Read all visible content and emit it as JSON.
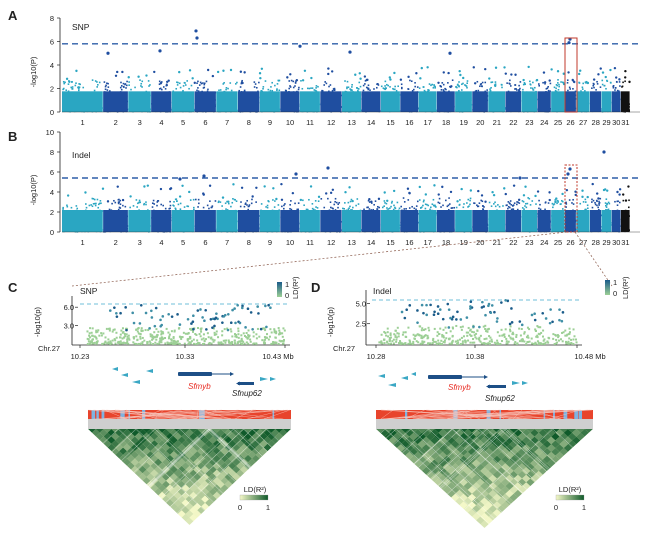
{
  "panels": {
    "A": {
      "letter": "A",
      "tag": "SNP",
      "ylabel": "-log10(P)",
      "yticks": [
        "0",
        "2",
        "4",
        "6",
        "8"
      ],
      "threshold": 5.8
    },
    "B": {
      "letter": "B",
      "tag": "Indel",
      "ylabel": "-log10(P)",
      "yticks": [
        "0",
        "2",
        "4",
        "6",
        "8",
        "10"
      ],
      "threshold": 5.4
    },
    "C": {
      "letter": "C",
      "tag": "SNP",
      "ylabel": "-log10(p)",
      "yticks": [
        "3.0",
        "6.0"
      ],
      "chr_label": "Chr.27",
      "xticks": [
        "10.23",
        "10.33",
        "10.43 Mb"
      ],
      "gene_red": "Sfmyb",
      "gene_black": "Sfnup62",
      "ld_legend_title": "LD(R²)",
      "ld_legend_hi": "1",
      "ld_legend_lo": "0",
      "heat_legend_title": "LD(R²)",
      "heat_legend_lo": "0",
      "heat_legend_hi": "1"
    },
    "D": {
      "letter": "D",
      "tag": "Indel",
      "ylabel": "-log10(p)",
      "yticks": [
        "2.5",
        "5.0"
      ],
      "chr_label": "Chr.27",
      "xticks": [
        "10.28",
        "10.38",
        "10.48 Mb"
      ],
      "gene_red": "Sfmyb",
      "gene_black": "Sfnup62",
      "ld_legend_title": "LD(R²)",
      "ld_legend_hi": "1",
      "ld_legend_lo": "0",
      "heat_legend_title": "LD(R²)",
      "heat_legend_lo": "0",
      "heat_legend_hi": "1"
    }
  },
  "chromosomes": [
    "1",
    "2",
    "3",
    "4",
    "5",
    "6",
    "7",
    "8",
    "9",
    "10",
    "11",
    "12",
    "13",
    "14",
    "15",
    "16",
    "17",
    "18",
    "19",
    "20",
    "21",
    "22",
    "23",
    "24",
    "25",
    "26",
    "27",
    "28",
    "29",
    "30",
    "31"
  ],
  "colors": {
    "light": "#2aa6c2",
    "dark": "#1f4ea0",
    "threshold": "#2f5fa8",
    "highlight": "#c0392b",
    "ld_low": "#9ccf95",
    "ld_high": "#1b5c8a",
    "heat_high": "#0f5a2a",
    "heat_low": "#f4f8c8",
    "snp_bar": "#e8442c"
  }
}
